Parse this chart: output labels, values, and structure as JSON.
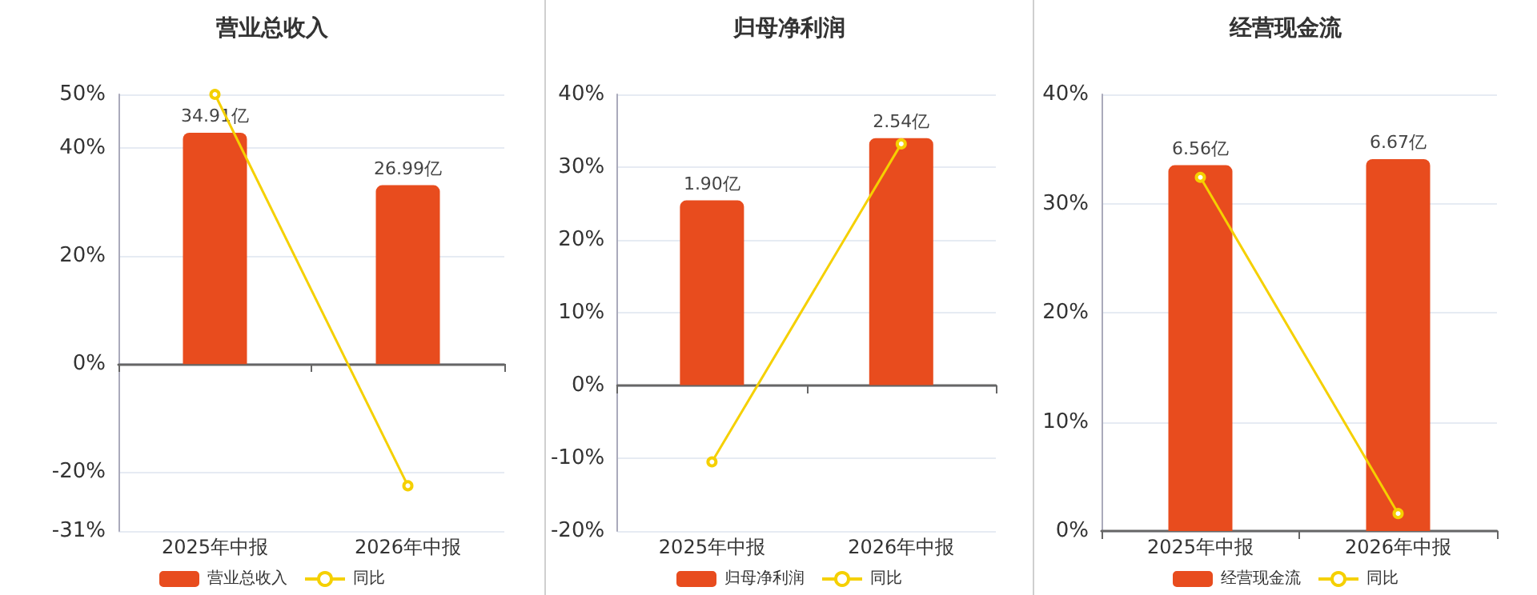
{
  "chart_data": [
    {
      "type": "bar",
      "title": "营业总收入",
      "categories": [
        "2025年中报",
        "2026年中报"
      ],
      "series": [
        {
          "name": "营业总收入",
          "axis": "y2",
          "color": "#e84c1e",
          "values": [
            34.91,
            26.99
          ],
          "value_labels": [
            "34.91亿",
            "26.99亿"
          ]
        },
        {
          "name": "同比",
          "type": "line",
          "color": "#f5d000",
          "marker": "circle",
          "values": [
            50,
            -22.6
          ]
        }
      ],
      "ylim": [
        -31,
        50
      ],
      "yticks": [
        {
          "value": -31,
          "label": "-31%"
        },
        {
          "value": -20,
          "label": "-20%"
        },
        {
          "value": 0,
          "label": "0%"
        },
        {
          "value": 20,
          "label": "20%"
        },
        {
          "value": 40,
          "label": "40%"
        },
        {
          "value": 50,
          "label": "50%"
        }
      ],
      "y2lim": [
        -25.2,
        40.7
      ],
      "tick_labels": "xy",
      "grid": "y",
      "legend": "bottom"
    },
    {
      "type": "bar",
      "title": "归母净利润",
      "categories": [
        "2025年中报",
        "2026年中报"
      ],
      "series": [
        {
          "name": "归母净利润",
          "axis": "y2",
          "color": "#e84c1e",
          "values": [
            1.9,
            2.54
          ],
          "value_labels": [
            "1.90亿",
            "2.54亿"
          ]
        },
        {
          "name": "同比",
          "type": "line",
          "color": "#f5d000",
          "marker": "circle",
          "values": [
            -10.5,
            33.2
          ]
        }
      ],
      "ylim": [
        -20,
        40
      ],
      "yticks": [
        {
          "value": -20,
          "label": "-20%"
        },
        {
          "value": -10,
          "label": "-10%"
        },
        {
          "value": 0,
          "label": "0%"
        },
        {
          "value": 10,
          "label": "10%"
        },
        {
          "value": 20,
          "label": "20%"
        },
        {
          "value": 30,
          "label": "30%"
        },
        {
          "value": 40,
          "label": "40%"
        }
      ],
      "y2lim": [
        -1.5,
        2.99
      ],
      "tick_labels": "xy",
      "grid": "y",
      "legend": "bottom"
    },
    {
      "type": "bar",
      "title": "经营现金流",
      "categories": [
        "2025年中报",
        "2026年中报"
      ],
      "series": [
        {
          "name": "经营现金流",
          "axis": "y2",
          "color": "#e84c1e",
          "values": [
            6.56,
            6.67
          ],
          "value_labels": [
            "6.56亿",
            "6.67亿"
          ]
        },
        {
          "name": "同比",
          "type": "line",
          "color": "#f5d000",
          "marker": "circle",
          "values": [
            32.4,
            1.6
          ]
        }
      ],
      "ylim": [
        0,
        40
      ],
      "yticks": [
        {
          "value": 0,
          "label": "0%"
        },
        {
          "value": 10,
          "label": "10%"
        },
        {
          "value": 20,
          "label": "20%"
        },
        {
          "value": 30,
          "label": "30%"
        },
        {
          "value": 40,
          "label": "40%"
        }
      ],
      "y2lim": [
        0,
        7.83
      ],
      "tick_labels": "xy",
      "grid": "y",
      "legend": "bottom"
    }
  ]
}
